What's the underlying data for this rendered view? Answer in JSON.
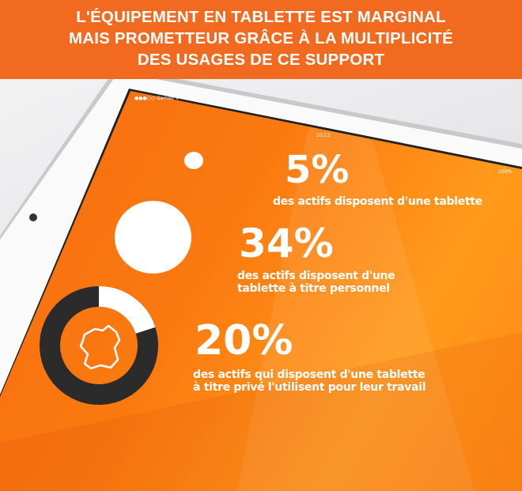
{
  "header": {
    "title_lines": [
      "L'ÉQUIPEMENT EN TABLETTE EST MARGINAL",
      "MAIS PROMETTEUR GRÂCE À LA MULTIPLICITÉ",
      "DES USAGES DE CE SUPPORT"
    ]
  },
  "status_bar": {
    "carrier": "●●●○○ Gameo ᯤ",
    "time": "20:13",
    "battery": "100%"
  },
  "colors": {
    "banner": "#f26a1f",
    "screen": "#f7780f",
    "donut": "#2b2b2b",
    "white": "#ffffff"
  },
  "stats": [
    {
      "value": "5%",
      "text_lines": [
        "des actifs disposent d'une tablette"
      ],
      "fraction": 0.05
    },
    {
      "value": "34%",
      "text_lines": [
        "des actifs disposent d'une",
        "tablette à titre personnel"
      ],
      "fraction": 0.34
    },
    {
      "value": "20%",
      "text_lines": [
        "des actifs qui disposent d'une tablette",
        "à titre privé l'utilisent pour leur travail"
      ],
      "fraction": 0.2,
      "icon": "france-map-icon"
    }
  ]
}
